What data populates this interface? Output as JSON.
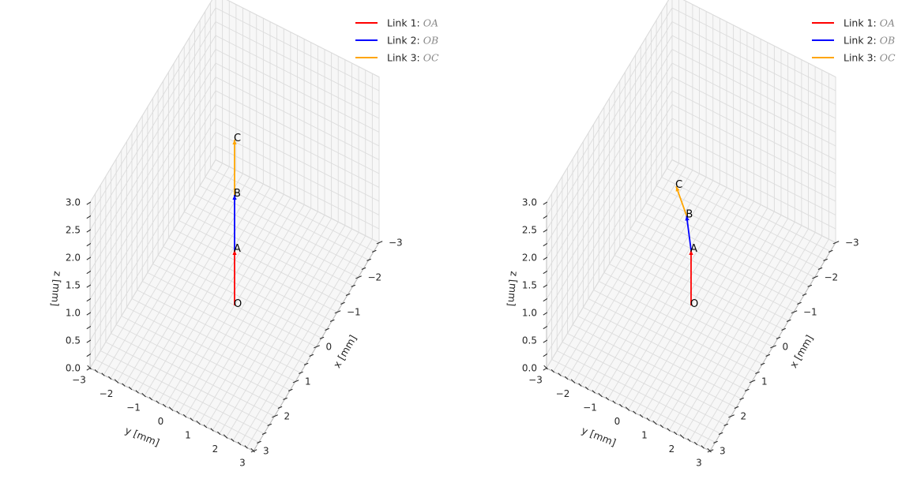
{
  "chart_data": [
    {
      "type": "line3d",
      "title": "",
      "xlabel": "x [mm]",
      "ylabel": "y [mm]",
      "zlabel": "z [mm]",
      "xlim": [
        -3,
        3
      ],
      "ylim": [
        -3,
        3
      ],
      "zlim": [
        0,
        3
      ],
      "x_ticks": [
        "−3",
        "−2",
        "−1",
        "0",
        "1",
        "2",
        "3"
      ],
      "y_ticks": [
        "−3",
        "−2",
        "−1",
        "0",
        "1",
        "2",
        "3"
      ],
      "z_ticks": [
        "0.0",
        "0.5",
        "1.0",
        "1.5",
        "2.0",
        "2.5",
        "3.0"
      ],
      "grid": true,
      "legend_position": "top-right",
      "points": [
        {
          "name": "O",
          "x": 0,
          "y": 0,
          "z": 0
        },
        {
          "name": "A",
          "x": 0,
          "y": 0,
          "z": 1
        },
        {
          "name": "B",
          "x": 0,
          "y": 0,
          "z": 2
        },
        {
          "name": "C",
          "x": 0,
          "y": 0,
          "z": 3
        }
      ],
      "series": [
        {
          "name": "Link 1: ",
          "math": "OA",
          "color": "#ff0000",
          "from": "O",
          "to": "A"
        },
        {
          "name": "Link 2: ",
          "math": "OB",
          "color": "#0000ff",
          "from": "A",
          "to": "B"
        },
        {
          "name": "Link 3: ",
          "math": "OC",
          "color": "#ffa500",
          "from": "B",
          "to": "C"
        }
      ]
    },
    {
      "type": "line3d",
      "title": "",
      "xlabel": "x [mm]",
      "ylabel": "y [mm]",
      "zlabel": "z [mm]",
      "xlim": [
        -3,
        3
      ],
      "ylim": [
        -3,
        3
      ],
      "zlim": [
        0,
        3
      ],
      "x_ticks": [
        "−3",
        "−2",
        "−1",
        "0",
        "1",
        "2",
        "3"
      ],
      "y_ticks": [
        "−3",
        "−2",
        "−1",
        "0",
        "1",
        "2",
        "3"
      ],
      "z_ticks": [
        "0.0",
        "0.5",
        "1.0",
        "1.5",
        "2.0",
        "2.5",
        "3.0"
      ],
      "grid": true,
      "legend_position": "top-right",
      "points": [
        {
          "name": "O",
          "x": 0,
          "y": 0,
          "z": 0
        },
        {
          "name": "A",
          "x": 0,
          "y": 0,
          "z": 1
        },
        {
          "name": "B",
          "x": -0.71,
          "y": -0.71,
          "z": 1
        },
        {
          "name": "C",
          "x": -1.24,
          "y": -1.5,
          "z": 1
        }
      ],
      "series": [
        {
          "name": "Link 1: ",
          "math": "OA",
          "color": "#ff0000",
          "from": "O",
          "to": "A"
        },
        {
          "name": "Link 2: ",
          "math": "OB",
          "color": "#0000ff",
          "from": "A",
          "to": "B"
        },
        {
          "name": "Link 3: ",
          "math": "OC",
          "color": "#ffa500",
          "from": "B",
          "to": "C"
        }
      ]
    }
  ]
}
